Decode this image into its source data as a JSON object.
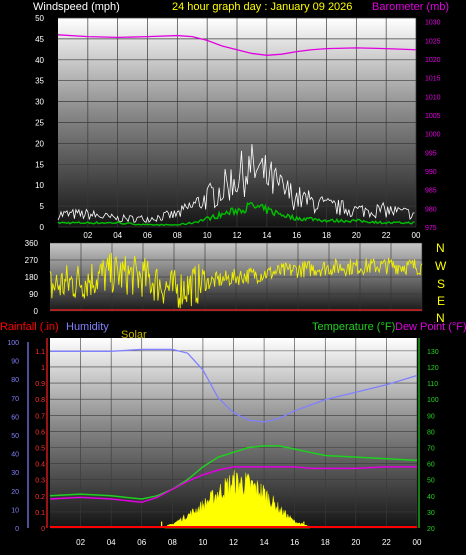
{
  "header": {
    "windspeed_label": "Windspeed (mph)",
    "title": "24 hour graph day : January 09 2026",
    "barometer_label": "Barometer (mb)"
  },
  "compass": [
    "N",
    "W",
    "S",
    "E",
    "N"
  ],
  "lower_header": {
    "rain_label": "Rainfall (.in)",
    "humidity_label": "Humidity",
    "solar_label": "Solar",
    "temp_label": "Temperature (°F)",
    "dew_label": "Dew Point (°F)"
  },
  "colors": {
    "wind_gust": "#ffffff",
    "wind_avg": "#00c000",
    "barometer": "#e000e0",
    "direction": "#f0f000",
    "humidity": "#8080ff",
    "temperature": "#20d020",
    "dew_point": "#e000e0",
    "solar": "#ffff00",
    "rain": "#ff0000",
    "title": "#ffff00"
  },
  "chart_data": [
    {
      "type": "line",
      "panel": "wind",
      "x_ticks": [
        "02",
        "04",
        "06",
        "08",
        "10",
        "12",
        "14",
        "16",
        "18",
        "20",
        "22",
        "00"
      ],
      "x": [
        0,
        2,
        4,
        6,
        8,
        9,
        10,
        11,
        12,
        13,
        14,
        15,
        16,
        17,
        18,
        20,
        22,
        24
      ],
      "y_left_ticks": [
        "0",
        "5",
        "10",
        "15",
        "20",
        "25",
        "30",
        "35",
        "40",
        "45",
        "50"
      ],
      "ylim_left": [
        0,
        50
      ],
      "y_right_ticks": [
        "975",
        "980",
        "985",
        "990",
        "995",
        "1000",
        "1005",
        "1010",
        "1015",
        "1020",
        "1025",
        "1030"
      ],
      "ylim_right": [
        975,
        1031
      ],
      "series": [
        {
          "name": "Windspeed (mph)",
          "axis": "left",
          "values": [
            3,
            3,
            2,
            2,
            3,
            5,
            7,
            9,
            12,
            14,
            12,
            9,
            7,
            6,
            5,
            4,
            4,
            3
          ]
        },
        {
          "axis": "left",
          "values": [
            1,
            1,
            1,
            0.5,
            0.5,
            1,
            2,
            3,
            4,
            5,
            4,
            3,
            2,
            2,
            1.5,
            1.5,
            1,
            1
          ]
        },
        {
          "name": "Barometer (mb)",
          "axis": "right",
          "values": [
            1026.5,
            1026,
            1025.8,
            1026,
            1026.3,
            1026,
            1025,
            1023.5,
            1022.5,
            1021.5,
            1021,
            1021.3,
            1022,
            1022.5,
            1022.8,
            1023,
            1022.8,
            1022.5
          ]
        }
      ]
    },
    {
      "type": "scatter",
      "panel": "direction",
      "x": [
        0,
        2,
        4,
        6,
        8,
        10,
        12,
        14,
        16,
        18,
        20,
        22,
        24
      ],
      "y_ticks": [
        "0",
        "90",
        "180",
        "270",
        "360"
      ],
      "ylim": [
        0,
        360
      ],
      "values": [
        130,
        160,
        200,
        180,
        110,
        150,
        180,
        200,
        220,
        230,
        235,
        240,
        235
      ]
    },
    {
      "type": "line",
      "panel": "temp_hum",
      "x_ticks": [
        "02",
        "04",
        "06",
        "08",
        "10",
        "12",
        "14",
        "16",
        "18",
        "20",
        "22",
        "00"
      ],
      "x": [
        0,
        2,
        4,
        6,
        7,
        8,
        9,
        10,
        11,
        12,
        13,
        14,
        15,
        16,
        17,
        18,
        20,
        22,
        24
      ],
      "y_humidity_ticks": [
        "0",
        "10",
        "20",
        "30",
        "40",
        "50",
        "60",
        "70",
        "80",
        "90",
        "100"
      ],
      "y_rain_ticks": [
        "0",
        "0.1",
        "0.2",
        "0.3",
        "0.4",
        "0.5",
        "0.6",
        "0.7",
        "0.8",
        "0.9",
        "1",
        "1.1"
      ],
      "ylim_rain": [
        0,
        1.18
      ],
      "y_temp_ticks": [
        "20",
        "30",
        "40",
        "50",
        "60",
        "70",
        "80",
        "90",
        "100",
        "110",
        "120",
        "130"
      ],
      "ylim_temp": [
        20,
        138
      ],
      "series": [
        {
          "name": "Humidity",
          "axis": "humidity",
          "values": [
            95,
            95,
            95,
            96,
            96,
            96,
            94,
            85,
            70,
            62,
            58,
            57,
            59,
            63,
            66,
            69,
            73,
            77,
            82
          ]
        },
        {
          "name": "Temperature (°F)",
          "axis": "temp",
          "values": [
            40,
            41,
            40,
            38,
            40,
            44,
            50,
            58,
            64,
            67,
            70,
            71,
            71,
            69,
            67,
            65,
            64,
            63,
            62
          ]
        },
        {
          "name": "Dew Point (°F)",
          "axis": "temp",
          "values": [
            38,
            39,
            38,
            36,
            39,
            44,
            49,
            53,
            56,
            58,
            58,
            58,
            58,
            58,
            57,
            57,
            57,
            58,
            58
          ]
        },
        {
          "name": "Rainfall (.in)",
          "axis": "rain",
          "values": [
            0,
            0,
            0,
            0,
            0,
            0,
            0,
            0,
            0,
            0,
            0,
            0,
            0,
            0,
            0,
            0,
            0,
            0,
            0
          ]
        }
      ],
      "solar": {
        "x": [
          7.5,
          8,
          9,
          10,
          11,
          12,
          13,
          14,
          15,
          16,
          17
        ],
        "values_temp_axis": [
          21,
          23,
          30,
          38,
          48,
          57,
          55,
          48,
          35,
          25,
          21
        ]
      }
    }
  ]
}
